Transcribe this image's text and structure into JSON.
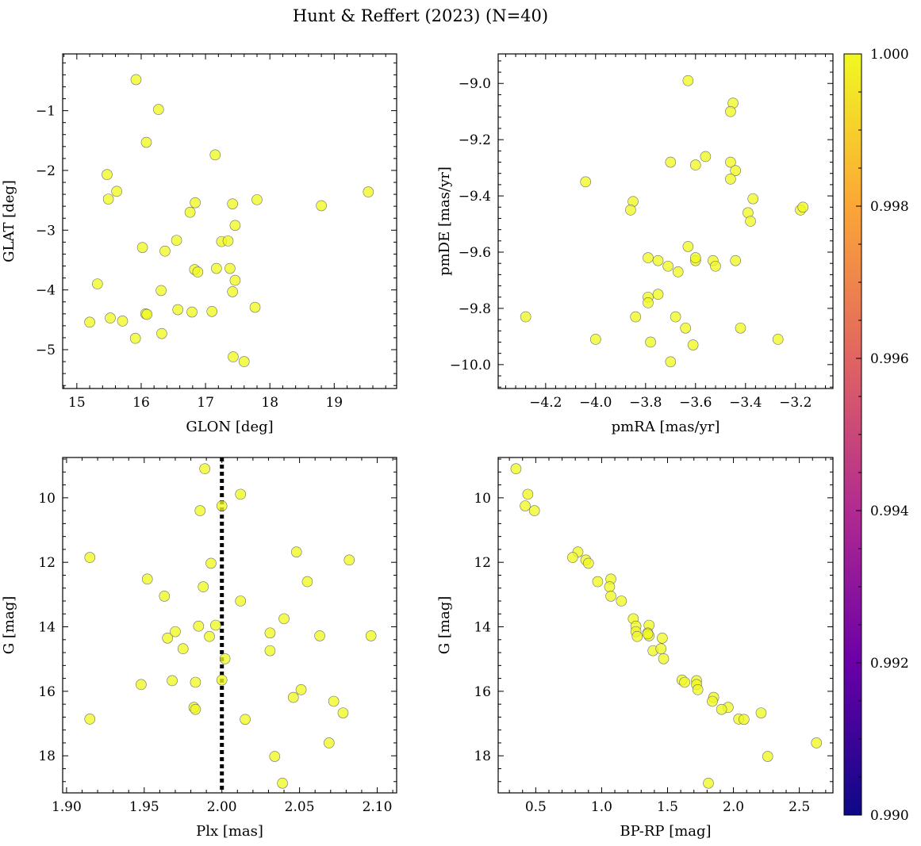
{
  "figure": {
    "title": "Hunt & Reffert (2023) (N=40)"
  },
  "colorbar": {
    "min": 0.99,
    "max": 1.0,
    "ticks": [
      "0.990",
      "0.992",
      "0.994",
      "0.996",
      "0.998",
      "1.000"
    ],
    "colormap": "plasma",
    "colors": [
      "#0d0887",
      "#6a00a8",
      "#b12a90",
      "#e16462",
      "#fca636",
      "#f0f921"
    ]
  },
  "chart_data": [
    {
      "type": "scatter",
      "xlabel": "GLON [deg]",
      "ylabel": "GLAT [deg]",
      "xlim": [
        14.78,
        19.97
      ],
      "ylim": [
        -5.65,
        -0.05
      ],
      "xticks": [
        "15",
        "16",
        "17",
        "18",
        "19"
      ],
      "yticks": [
        "−5",
        "−4",
        "−3",
        "−2",
        "−1"
      ],
      "point_color": "#f0f921",
      "points": [
        [
          15.92,
          -0.48
        ],
        [
          16.27,
          -0.98
        ],
        [
          16.08,
          -1.53
        ],
        [
          17.15,
          -1.74
        ],
        [
          15.47,
          -2.07
        ],
        [
          15.62,
          -2.35
        ],
        [
          15.49,
          -2.48
        ],
        [
          16.84,
          -2.54
        ],
        [
          17.42,
          -2.56
        ],
        [
          17.8,
          -2.49
        ],
        [
          18.8,
          -2.59
        ],
        [
          19.53,
          -2.36
        ],
        [
          16.76,
          -2.7
        ],
        [
          17.46,
          -2.92
        ],
        [
          16.55,
          -3.17
        ],
        [
          17.25,
          -3.19
        ],
        [
          17.35,
          -3.18
        ],
        [
          16.02,
          -3.29
        ],
        [
          16.37,
          -3.35
        ],
        [
          17.17,
          -3.64
        ],
        [
          17.38,
          -3.64
        ],
        [
          16.83,
          -3.66
        ],
        [
          16.88,
          -3.7
        ],
        [
          17.46,
          -3.84
        ],
        [
          15.32,
          -3.9
        ],
        [
          16.31,
          -4.01
        ],
        [
          17.42,
          -4.03
        ],
        [
          17.77,
          -4.29
        ],
        [
          16.57,
          -4.33
        ],
        [
          17.1,
          -4.36
        ],
        [
          16.79,
          -4.37
        ],
        [
          16.07,
          -4.4
        ],
        [
          16.09,
          -4.41
        ],
        [
          15.52,
          -4.47
        ],
        [
          15.71,
          -4.52
        ],
        [
          15.2,
          -4.54
        ],
        [
          16.32,
          -4.73
        ],
        [
          15.91,
          -4.81
        ],
        [
          17.43,
          -5.12
        ],
        [
          17.6,
          -5.2
        ]
      ]
    },
    {
      "type": "scatter",
      "xlabel": "pmRA [mas/yr]",
      "ylabel": "pmDE [mas/yr]",
      "xlim": [
        -4.39,
        -3.05
      ],
      "ylim": [
        -10.085,
        -8.895
      ],
      "xticks": [
        "−4.2",
        "−4.0",
        "−3.8",
        "−3.6",
        "−3.4",
        "−3.2"
      ],
      "yticks": [
        "−10.0",
        "−9.8",
        "−9.6",
        "−9.4",
        "−9.2",
        "−9.0"
      ],
      "point_color": "#f0f921",
      "points": [
        [
          -3.63,
          -8.99
        ],
        [
          -3.45,
          -9.07
        ],
        [
          -3.46,
          -9.1
        ],
        [
          -3.56,
          -9.26
        ],
        [
          -3.7,
          -9.28
        ],
        [
          -3.6,
          -9.29
        ],
        [
          -3.46,
          -9.28
        ],
        [
          -3.44,
          -9.31
        ],
        [
          -3.46,
          -9.34
        ],
        [
          -4.04,
          -9.35
        ],
        [
          -3.37,
          -9.41
        ],
        [
          -3.85,
          -9.42
        ],
        [
          -3.86,
          -9.45
        ],
        [
          -3.18,
          -9.45
        ],
        [
          -3.17,
          -9.44
        ],
        [
          -3.39,
          -9.46
        ],
        [
          -3.38,
          -9.49
        ],
        [
          -3.63,
          -9.58
        ],
        [
          -3.79,
          -9.62
        ],
        [
          -3.75,
          -9.63
        ],
        [
          -3.6,
          -9.63
        ],
        [
          -3.6,
          -9.62
        ],
        [
          -3.53,
          -9.63
        ],
        [
          -3.44,
          -9.63
        ],
        [
          -3.52,
          -9.65
        ],
        [
          -3.71,
          -9.65
        ],
        [
          -3.67,
          -9.67
        ],
        [
          -3.75,
          -9.75
        ],
        [
          -3.79,
          -9.76
        ],
        [
          -3.79,
          -9.78
        ],
        [
          -4.28,
          -9.83
        ],
        [
          -3.84,
          -9.83
        ],
        [
          -3.68,
          -9.83
        ],
        [
          -3.64,
          -9.87
        ],
        [
          -3.42,
          -9.87
        ],
        [
          -4.0,
          -9.91
        ],
        [
          -3.78,
          -9.92
        ],
        [
          -3.27,
          -9.91
        ],
        [
          -3.61,
          -9.93
        ],
        [
          -3.7,
          -9.99
        ]
      ]
    },
    {
      "type": "scatter",
      "xlabel": "Plx [mas]",
      "ylabel": "G [mag]",
      "xlim": [
        1.8975,
        2.1125
      ],
      "ylim": [
        19.15,
        8.75
      ],
      "xticks": [
        "1.90",
        "1.95",
        "2.00",
        "2.05",
        "2.10"
      ],
      "yticks": [
        "10",
        "12",
        "14",
        "16",
        "18"
      ],
      "vline": {
        "x": 2.0,
        "style": "dotted",
        "color": "#000000"
      },
      "point_color": "#f0f921",
      "points": [
        [
          1.989,
          9.1
        ],
        [
          2.012,
          9.89
        ],
        [
          2.0,
          10.25
        ],
        [
          1.986,
          10.4
        ],
        [
          2.048,
          11.68
        ],
        [
          1.915,
          11.85
        ],
        [
          2.082,
          11.93
        ],
        [
          1.993,
          12.03
        ],
        [
          1.952,
          12.52
        ],
        [
          2.055,
          12.6
        ],
        [
          1.988,
          12.76
        ],
        [
          1.963,
          13.05
        ],
        [
          2.012,
          13.2
        ],
        [
          2.04,
          13.75
        ],
        [
          1.996,
          13.95
        ],
        [
          1.985,
          13.98
        ],
        [
          1.97,
          14.15
        ],
        [
          2.031,
          14.19
        ],
        [
          2.063,
          14.28
        ],
        [
          1.992,
          14.3
        ],
        [
          1.965,
          14.35
        ],
        [
          2.096,
          14.28
        ],
        [
          1.975,
          14.68
        ],
        [
          2.031,
          14.74
        ],
        [
          2.002,
          14.99
        ],
        [
          2.0,
          15.65
        ],
        [
          1.968,
          15.67
        ],
        [
          1.983,
          15.72
        ],
        [
          1.948,
          15.79
        ],
        [
          2.051,
          15.95
        ],
        [
          2.046,
          16.19
        ],
        [
          2.072,
          16.31
        ],
        [
          1.982,
          16.5
        ],
        [
          1.983,
          16.56
        ],
        [
          2.078,
          16.67
        ],
        [
          1.915,
          16.86
        ],
        [
          2.015,
          16.87
        ],
        [
          2.069,
          17.6
        ],
        [
          2.034,
          18.02
        ],
        [
          2.039,
          18.85
        ]
      ]
    },
    {
      "type": "scatter",
      "xlabel": "BP-RP [mag]",
      "ylabel": "G [mag]",
      "xlim": [
        0.215,
        2.755
      ],
      "ylim": [
        19.15,
        8.75
      ],
      "xticks": [
        "0.5",
        "1.0",
        "1.5",
        "2.0",
        "2.5"
      ],
      "yticks": [
        "10",
        "12",
        "14",
        "16",
        "18"
      ],
      "point_color": "#f0f921",
      "points": [
        [
          0.35,
          9.1
        ],
        [
          0.44,
          9.89
        ],
        [
          0.42,
          10.25
        ],
        [
          0.49,
          10.4
        ],
        [
          0.82,
          11.68
        ],
        [
          0.78,
          11.85
        ],
        [
          0.88,
          11.93
        ],
        [
          0.9,
          12.03
        ],
        [
          1.07,
          12.52
        ],
        [
          0.97,
          12.6
        ],
        [
          1.06,
          12.76
        ],
        [
          1.07,
          13.05
        ],
        [
          1.15,
          13.2
        ],
        [
          1.24,
          13.75
        ],
        [
          1.36,
          13.95
        ],
        [
          1.26,
          13.98
        ],
        [
          1.26,
          14.15
        ],
        [
          1.35,
          14.19
        ],
        [
          1.36,
          14.28
        ],
        [
          1.27,
          14.3
        ],
        [
          1.46,
          14.35
        ],
        [
          1.35,
          14.22
        ],
        [
          1.39,
          14.74
        ],
        [
          1.45,
          14.68
        ],
        [
          1.47,
          14.99
        ],
        [
          1.61,
          15.65
        ],
        [
          1.72,
          15.67
        ],
        [
          1.63,
          15.72
        ],
        [
          1.72,
          15.79
        ],
        [
          1.73,
          15.95
        ],
        [
          1.85,
          16.19
        ],
        [
          1.84,
          16.31
        ],
        [
          1.96,
          16.5
        ],
        [
          1.91,
          16.56
        ],
        [
          2.21,
          16.67
        ],
        [
          2.04,
          16.86
        ],
        [
          2.08,
          16.87
        ],
        [
          2.63,
          17.6
        ],
        [
          2.26,
          18.02
        ],
        [
          1.81,
          18.85
        ]
      ]
    }
  ]
}
